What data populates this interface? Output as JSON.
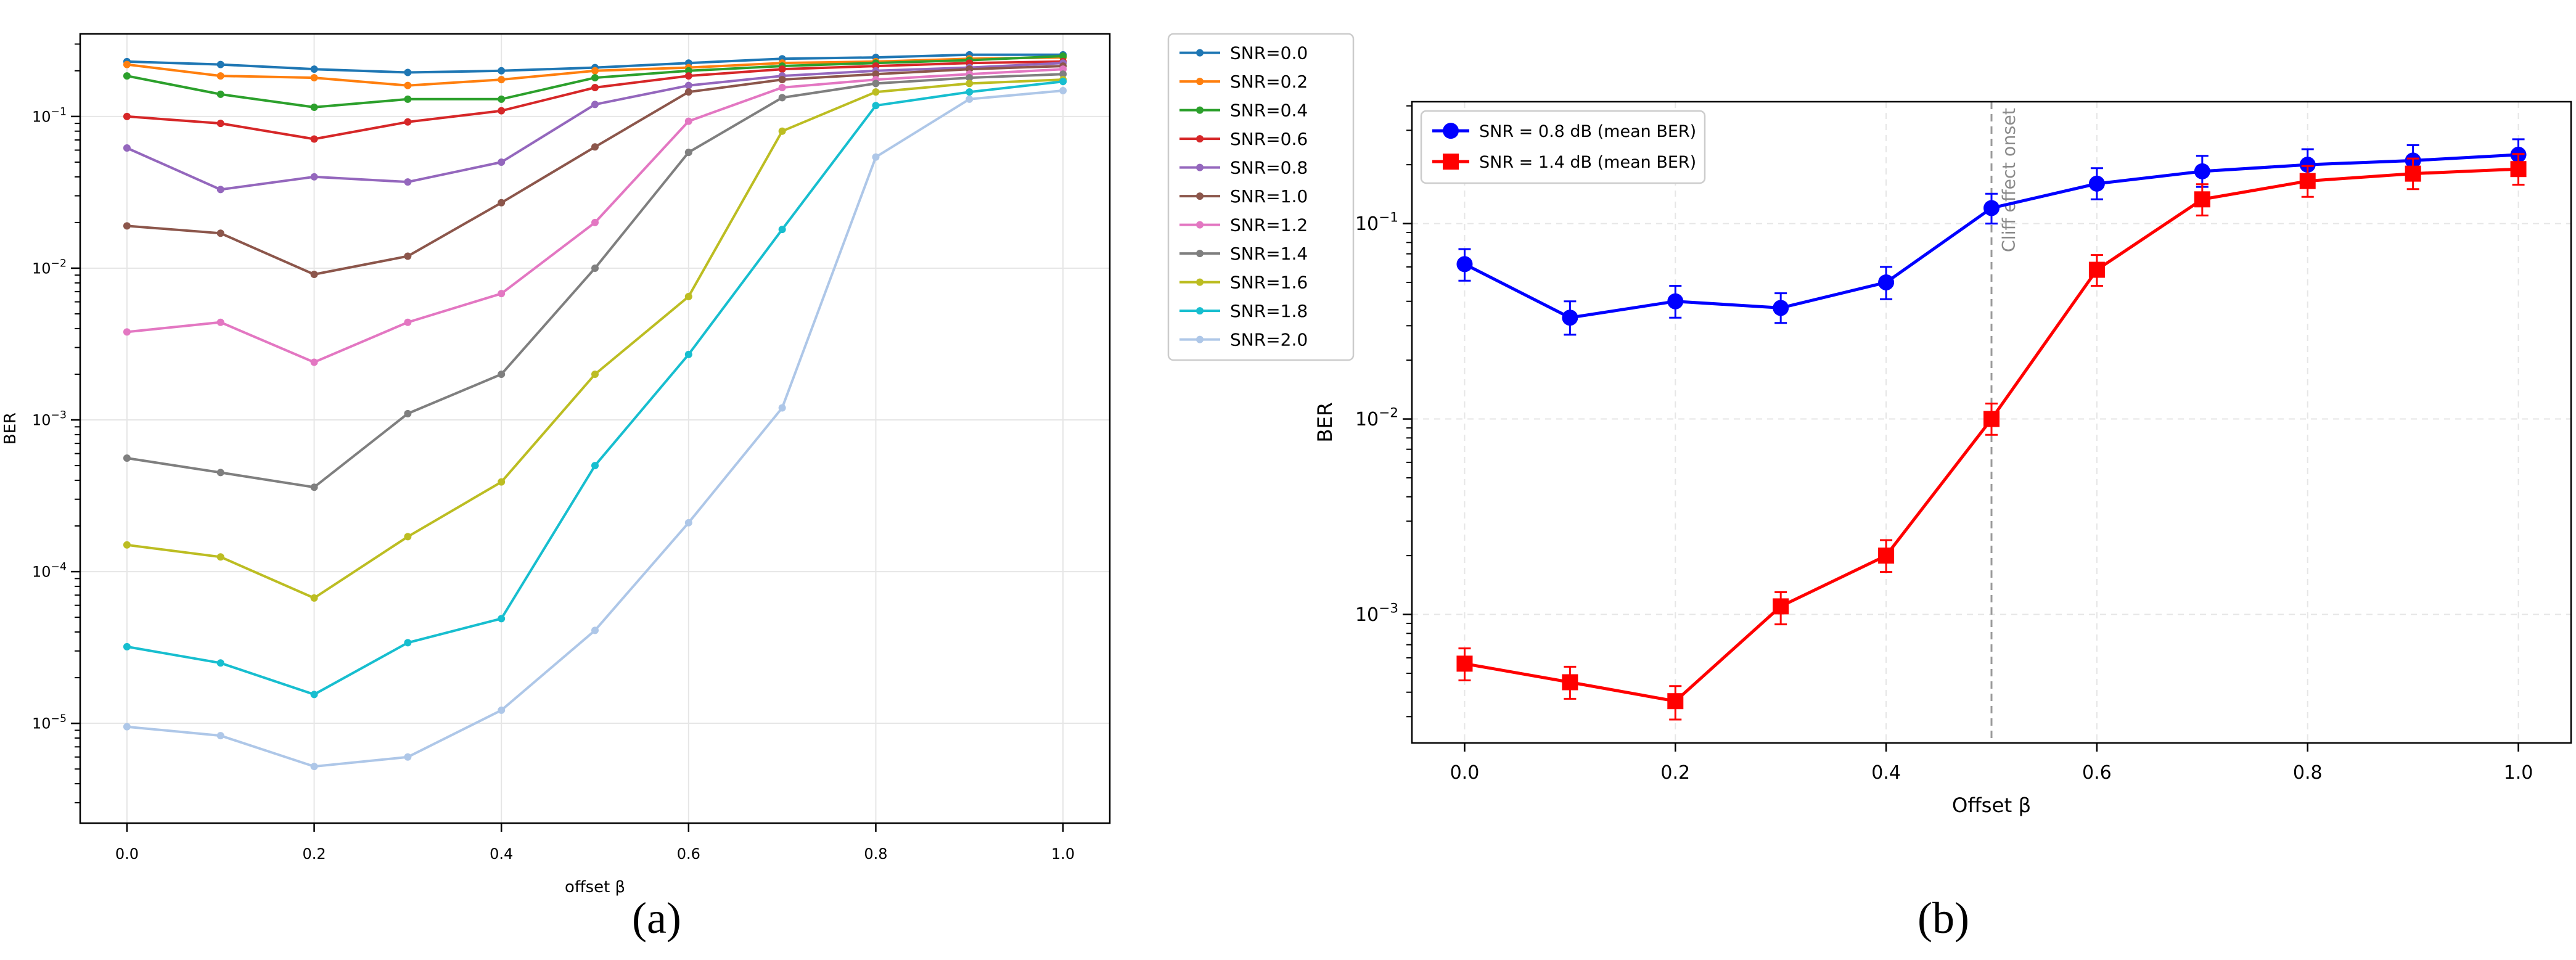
{
  "captions": {
    "a": "(a)",
    "b": "(b)"
  },
  "chart_data": [
    {
      "type": "line",
      "panel": "(a)",
      "title": "",
      "xlabel": "offset β",
      "ylabel": "BER",
      "yscale": "log",
      "xlim": [
        -0.05,
        1.05
      ],
      "ylim": [
        2.2e-06,
        0.35
      ],
      "x_ticks": [
        0.0,
        0.2,
        0.4,
        0.6,
        0.8,
        1.0
      ],
      "x_tick_labels": [
        "0.0",
        "0.2",
        "0.4",
        "0.6",
        "0.8",
        "1.0"
      ],
      "y_ticks": [
        1e-05,
        0.0001,
        0.001,
        0.01,
        0.1
      ],
      "y_tick_labels": [
        {
          "base": "10",
          "exp": "−5"
        },
        {
          "base": "10",
          "exp": "−4"
        },
        {
          "base": "10",
          "exp": "−3"
        },
        {
          "base": "10",
          "exp": "−2"
        },
        {
          "base": "10",
          "exp": "−1"
        }
      ],
      "grid": true,
      "legend_position": "outside-right",
      "x": [
        0.0,
        0.1,
        0.2,
        0.3,
        0.4,
        0.5,
        0.6,
        0.7,
        0.8,
        0.9,
        1.0
      ],
      "series": [
        {
          "name": "SNR=0.0",
          "color": "#1f77b4",
          "values": [
            0.23,
            0.22,
            0.205,
            0.195,
            0.2,
            0.21,
            0.225,
            0.24,
            0.245,
            0.255,
            0.255
          ]
        },
        {
          "name": "SNR=0.2",
          "color": "#ff7f0e",
          "values": [
            0.22,
            0.185,
            0.18,
            0.16,
            0.175,
            0.2,
            0.21,
            0.225,
            0.23,
            0.24,
            0.245
          ]
        },
        {
          "name": "SNR=0.4",
          "color": "#2ca02c",
          "values": [
            0.185,
            0.14,
            0.115,
            0.13,
            0.13,
            0.18,
            0.2,
            0.215,
            0.225,
            0.235,
            0.25
          ]
        },
        {
          "name": "SNR=0.6",
          "color": "#d62728",
          "values": [
            0.1,
            0.09,
            0.071,
            0.092,
            0.109,
            0.155,
            0.185,
            0.205,
            0.215,
            0.225,
            0.23
          ]
        },
        {
          "name": "SNR=0.8",
          "color": "#9467bd",
          "values": [
            0.062,
            0.033,
            0.04,
            0.037,
            0.05,
            0.12,
            0.16,
            0.185,
            0.2,
            0.21,
            0.225
          ]
        },
        {
          "name": "SNR=1.0",
          "color": "#8c564b",
          "values": [
            0.019,
            0.017,
            0.0091,
            0.012,
            0.027,
            0.063,
            0.145,
            0.175,
            0.19,
            0.205,
            0.215
          ]
        },
        {
          "name": "SNR=1.2",
          "color": "#e377c2",
          "values": [
            0.0038,
            0.0044,
            0.0024,
            0.0044,
            0.0068,
            0.02,
            0.093,
            0.155,
            0.175,
            0.19,
            0.205
          ]
        },
        {
          "name": "SNR=1.4",
          "color": "#7f7f7f",
          "values": [
            0.00056,
            0.00045,
            0.00036,
            0.0011,
            0.002,
            0.01,
            0.058,
            0.133,
            0.165,
            0.18,
            0.19
          ]
        },
        {
          "name": "SNR=1.6",
          "color": "#bcbd22",
          "values": [
            0.00015,
            0.000125,
            6.7e-05,
            0.00017,
            0.00039,
            0.002,
            0.0065,
            0.08,
            0.145,
            0.165,
            0.175
          ]
        },
        {
          "name": "SNR=1.8",
          "color": "#17becf",
          "values": [
            3.2e-05,
            2.5e-05,
            1.55e-05,
            3.4e-05,
            4.9e-05,
            0.0005,
            0.0027,
            0.018,
            0.118,
            0.145,
            0.17
          ]
        },
        {
          "name": "SNR=2.0",
          "color": "#aec7e8",
          "values": [
            9.5e-06,
            8.3e-06,
            5.2e-06,
            6e-06,
            1.22e-05,
            4.1e-05,
            0.00021,
            0.0012,
            0.054,
            0.13,
            0.148
          ]
        }
      ]
    },
    {
      "type": "line",
      "panel": "(b)",
      "title": "",
      "xlabel": "Offset β",
      "ylabel": "BER",
      "yscale": "log",
      "xlim": [
        -0.05,
        1.05
      ],
      "ylim": [
        0.00022,
        0.42
      ],
      "x_ticks": [
        0.0,
        0.2,
        0.4,
        0.6,
        0.8,
        1.0
      ],
      "x_tick_labels": [
        "0.0",
        "0.2",
        "0.4",
        "0.6",
        "0.8",
        "1.0"
      ],
      "y_ticks": [
        0.001,
        0.01,
        0.1
      ],
      "y_tick_labels": [
        {
          "base": "10",
          "exp": "−3"
        },
        {
          "base": "10",
          "exp": "−2"
        },
        {
          "base": "10",
          "exp": "−1"
        }
      ],
      "grid": true,
      "grid_style": "dashed",
      "legend_position": "top-left",
      "annotation": {
        "text": "Cliff effect onset",
        "x": 0.5,
        "style": "dashed-vertical-line"
      },
      "x": [
        0.0,
        0.1,
        0.2,
        0.3,
        0.4,
        0.5,
        0.6,
        0.7,
        0.8,
        0.9,
        1.0
      ],
      "series": [
        {
          "name": "SNR = 0.8 dB (mean BER)",
          "color": "#0000ff",
          "marker": "circle",
          "values": [
            0.062,
            0.033,
            0.04,
            0.037,
            0.05,
            0.12,
            0.16,
            0.185,
            0.2,
            0.21,
            0.225
          ],
          "err_low": [
            0.051,
            0.027,
            0.033,
            0.031,
            0.041,
            0.1,
            0.133,
            0.154,
            0.167,
            0.175,
            0.188
          ],
          "err_high": [
            0.074,
            0.04,
            0.048,
            0.044,
            0.06,
            0.142,
            0.192,
            0.222,
            0.24,
            0.252,
            0.27
          ]
        },
        {
          "name": "SNR = 1.4 dB (mean BER)",
          "color": "#ff0000",
          "marker": "square",
          "values": [
            0.00056,
            0.00045,
            0.00036,
            0.0011,
            0.002,
            0.01,
            0.058,
            0.133,
            0.165,
            0.18,
            0.19
          ],
          "err_low": [
            0.00046,
            0.00037,
            0.00029,
            0.00089,
            0.00165,
            0.0083,
            0.048,
            0.11,
            0.137,
            0.15,
            0.158
          ],
          "err_high": [
            0.00067,
            0.00054,
            0.00043,
            0.0013,
            0.0024,
            0.012,
            0.069,
            0.159,
            0.197,
            0.215,
            0.227
          ]
        }
      ]
    }
  ]
}
